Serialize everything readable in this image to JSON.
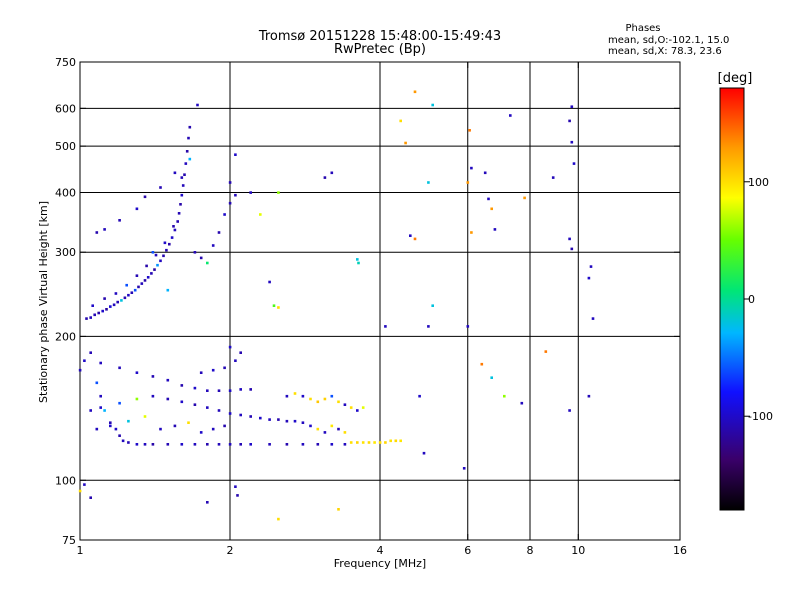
{
  "chart_data": {
    "type": "scatter",
    "title": "Tromsø 20151228 15:48:00-15:49:43",
    "subtitle": "RwPretec (Bp)",
    "phases_title": "Phases",
    "phases_stats_o": "mean, sd,O:-102.1, 15.0",
    "phases_stats_x": "mean, sd,X:  78.3, 23.6",
    "xlabel": "Frequency [MHz]",
    "ylabel": "Stationary phase Virtual Height [km]",
    "xscale": "log",
    "yscale": "log",
    "xlim": [
      1,
      16
    ],
    "ylim": [
      75,
      750
    ],
    "x_ticks": [
      1,
      2,
      4,
      6,
      8,
      10,
      16
    ],
    "x_ticklabels": [
      "1",
      "2",
      "4",
      "6",
      "8",
      "10",
      "16"
    ],
    "x_gridlines": [
      2,
      4,
      6,
      8,
      10
    ],
    "y_ticks": [
      75,
      100,
      200,
      300,
      400,
      500,
      600,
      750
    ],
    "y_ticklabels": [
      "75",
      "100",
      "200",
      "300",
      "400",
      "500",
      "600",
      "750"
    ],
    "y_gridlines": [
      100,
      200,
      300,
      400,
      500,
      600
    ],
    "colorbar": {
      "label": "[deg]",
      "range": [
        -180,
        180
      ],
      "ticks": [
        -100,
        0,
        100
      ],
      "ticklabels": [
        "-100",
        "0",
        "100"
      ]
    },
    "series": [
      {
        "points": [
          [
            1.03,
            218,
            -110
          ],
          [
            1.05,
            219,
            -105
          ],
          [
            1.07,
            222,
            -108
          ],
          [
            1.09,
            224,
            -112
          ],
          [
            1.11,
            226,
            -100
          ],
          [
            1.13,
            228,
            -115
          ],
          [
            1.15,
            231,
            -95
          ],
          [
            1.17,
            233,
            -105
          ],
          [
            1.19,
            236,
            -108
          ],
          [
            1.21,
            238,
            -20
          ],
          [
            1.23,
            241,
            -110
          ],
          [
            1.25,
            244,
            -102
          ],
          [
            1.27,
            247,
            -108
          ],
          [
            1.29,
            250,
            -60
          ],
          [
            1.31,
            254,
            -110
          ],
          [
            1.33,
            258,
            -105
          ],
          [
            1.35,
            262,
            -112
          ],
          [
            1.37,
            266,
            -100
          ],
          [
            1.39,
            271,
            -108
          ],
          [
            1.41,
            276,
            -115
          ],
          [
            1.43,
            282,
            -40
          ],
          [
            1.45,
            288,
            -104
          ],
          [
            1.47,
            295,
            -110
          ],
          [
            1.49,
            303,
            -108
          ],
          [
            1.51,
            312,
            -112
          ],
          [
            1.53,
            322,
            -100
          ],
          [
            1.55,
            334,
            -105
          ],
          [
            1.57,
            348,
            -110
          ],
          [
            1.58,
            362,
            -108
          ],
          [
            1.59,
            378,
            -112
          ],
          [
            1.6,
            395,
            -100
          ],
          [
            1.61,
            414,
            -106
          ],
          [
            1.62,
            436,
            -110
          ],
          [
            1.63,
            460,
            -104
          ],
          [
            1.64,
            488,
            -112
          ],
          [
            1.65,
            520,
            -108
          ],
          [
            1.66,
            548,
            -110
          ],
          [
            1.06,
            232,
            -100
          ],
          [
            1.12,
            240,
            -110
          ],
          [
            1.18,
            246,
            -104
          ],
          [
            1.24,
            256,
            -60
          ],
          [
            1.3,
            268,
            -108
          ],
          [
            1.36,
            281,
            -112
          ],
          [
            1.42,
            296,
            -104
          ],
          [
            1.48,
            314,
            -100
          ],
          [
            1.54,
            340,
            -110
          ],
          [
            1.6,
            430,
            -106
          ],
          [
            1.66,
            470,
            -30
          ],
          [
            1.7,
            300,
            -108
          ],
          [
            1.75,
            292,
            -110
          ],
          [
            1.8,
            285,
            10
          ],
          [
            1.85,
            310,
            -104
          ],
          [
            1.9,
            330,
            -110
          ],
          [
            1.95,
            360,
            -100
          ],
          [
            2.0,
            380,
            -108
          ],
          [
            2.05,
            395,
            -106
          ],
          [
            1.08,
            330,
            -110
          ],
          [
            1.12,
            335,
            -105
          ],
          [
            1.2,
            350,
            -108
          ],
          [
            1.3,
            370,
            -100
          ],
          [
            1.35,
            392,
            -112
          ],
          [
            1.45,
            410,
            -108
          ],
          [
            1.55,
            440,
            -104
          ],
          [
            1.4,
            300,
            -60
          ],
          [
            1.5,
            250,
            -30
          ],
          [
            1.72,
            610,
            -104
          ],
          [
            2.0,
            420,
            -108
          ],
          [
            2.05,
            480,
            -100
          ],
          [
            2.2,
            400,
            -104
          ],
          [
            2.3,
            360,
            80
          ],
          [
            2.5,
            400,
            60
          ],
          [
            3.1,
            430,
            -110
          ],
          [
            3.2,
            440,
            -106
          ],
          [
            3.6,
            290,
            -20
          ],
          [
            3.62,
            285,
            -10
          ],
          [
            2.4,
            260,
            -104
          ],
          [
            2.45,
            232,
            40
          ],
          [
            2.5,
            230,
            100
          ],
          [
            1.0,
            170,
            -104
          ],
          [
            1.02,
            178,
            -100
          ],
          [
            1.05,
            185,
            -108
          ],
          [
            1.08,
            160,
            -60
          ],
          [
            1.1,
            150,
            -104
          ],
          [
            1.12,
            140,
            -30
          ],
          [
            1.15,
            132,
            -108
          ],
          [
            1.18,
            128,
            -100
          ],
          [
            1.2,
            124,
            -110
          ],
          [
            1.22,
            121,
            -104
          ],
          [
            1.25,
            120,
            -108
          ],
          [
            1.3,
            119,
            -100
          ],
          [
            1.35,
            119,
            -104
          ],
          [
            1.4,
            119,
            -112
          ],
          [
            1.5,
            119,
            -108
          ],
          [
            1.6,
            119,
            -100
          ],
          [
            1.7,
            119,
            -104
          ],
          [
            1.8,
            119,
            -110
          ],
          [
            1.9,
            119,
            -106
          ],
          [
            2.0,
            119,
            -104
          ],
          [
            2.1,
            119,
            -108
          ],
          [
            2.2,
            119,
            -100
          ],
          [
            2.4,
            119,
            -106
          ],
          [
            2.6,
            119,
            -110
          ],
          [
            2.8,
            119,
            -104
          ],
          [
            3.0,
            119,
            -108
          ],
          [
            3.2,
            119,
            -100
          ],
          [
            3.4,
            119,
            -104
          ],
          [
            3.5,
            120,
            100
          ],
          [
            3.6,
            120,
            104
          ],
          [
            3.7,
            120,
            98
          ],
          [
            3.8,
            120,
            102
          ],
          [
            3.9,
            120,
            96
          ],
          [
            4.0,
            120,
            100
          ],
          [
            4.1,
            120,
            104
          ],
          [
            4.2,
            121,
            98
          ],
          [
            4.3,
            121,
            102
          ],
          [
            4.4,
            121,
            96
          ],
          [
            1.1,
            176,
            -104
          ],
          [
            1.2,
            172,
            -106
          ],
          [
            1.3,
            168,
            -100
          ],
          [
            1.4,
            165,
            -108
          ],
          [
            1.5,
            162,
            -104
          ],
          [
            1.6,
            158,
            -110
          ],
          [
            1.7,
            156,
            -100
          ],
          [
            1.8,
            154,
            -106
          ],
          [
            1.9,
            154,
            -108
          ],
          [
            2.0,
            154,
            -100
          ],
          [
            2.1,
            155,
            -104
          ],
          [
            2.2,
            155,
            -110
          ],
          [
            1.75,
            168,
            -106
          ],
          [
            1.85,
            170,
            -100
          ],
          [
            1.95,
            172,
            -108
          ],
          [
            2.05,
            178,
            -104
          ],
          [
            2.1,
            185,
            -110
          ],
          [
            2.0,
            190,
            -100
          ],
          [
            1.05,
            140,
            -104
          ],
          [
            1.1,
            142,
            -100
          ],
          [
            1.2,
            145,
            -60
          ],
          [
            1.3,
            148,
            60
          ],
          [
            1.4,
            150,
            -104
          ],
          [
            1.5,
            148,
            -108
          ],
          [
            1.6,
            146,
            -100
          ],
          [
            1.7,
            144,
            -110
          ],
          [
            1.8,
            142,
            -104
          ],
          [
            1.9,
            140,
            -106
          ],
          [
            2.0,
            138,
            -100
          ],
          [
            2.1,
            137,
            -104
          ],
          [
            2.2,
            136,
            -108
          ],
          [
            2.3,
            135,
            -100
          ],
          [
            2.4,
            134,
            -104
          ],
          [
            2.5,
            134,
            -110
          ],
          [
            2.6,
            133,
            -106
          ],
          [
            2.7,
            133,
            -100
          ],
          [
            2.8,
            132,
            -104
          ],
          [
            1.08,
            128,
            -104
          ],
          [
            1.15,
            130,
            -100
          ],
          [
            1.25,
            133,
            -20
          ],
          [
            1.35,
            136,
            80
          ],
          [
            1.45,
            128,
            -104
          ],
          [
            1.55,
            130,
            -108
          ],
          [
            1.65,
            132,
            100
          ],
          [
            1.75,
            126,
            -100
          ],
          [
            1.85,
            128,
            -104
          ],
          [
            1.95,
            130,
            -110
          ],
          [
            2.6,
            150,
            -104
          ],
          [
            2.7,
            152,
            100
          ],
          [
            2.8,
            150,
            -100
          ],
          [
            2.9,
            148,
            100
          ],
          [
            3.0,
            146,
            110
          ],
          [
            3.1,
            148,
            106
          ],
          [
            3.2,
            150,
            -60
          ],
          [
            3.3,
            146,
            100
          ],
          [
            3.4,
            144,
            -104
          ],
          [
            3.5,
            142,
            100
          ],
          [
            3.6,
            140,
            -100
          ],
          [
            3.7,
            142,
            80
          ],
          [
            2.9,
            130,
            -100
          ],
          [
            3.0,
            128,
            100
          ],
          [
            3.1,
            126,
            -104
          ],
          [
            3.2,
            130,
            96
          ],
          [
            3.3,
            128,
            -108
          ],
          [
            3.4,
            126,
            100
          ],
          [
            1.0,
            95,
            100
          ],
          [
            1.02,
            98,
            -104
          ],
          [
            1.05,
            92,
            -110
          ],
          [
            1.8,
            90,
            -108
          ],
          [
            2.05,
            97,
            -104
          ],
          [
            2.07,
            93,
            -110
          ],
          [
            2.5,
            83,
            100
          ],
          [
            3.3,
            87,
            104
          ],
          [
            4.1,
            210,
            -104
          ],
          [
            4.8,
            150,
            -100
          ],
          [
            4.9,
            114,
            -104
          ],
          [
            5.0,
            210,
            -104
          ],
          [
            5.1,
            610,
            -20
          ],
          [
            4.7,
            650,
            130
          ],
          [
            4.5,
            508,
            130
          ],
          [
            4.4,
            565,
            100
          ],
          [
            4.6,
            325,
            -104
          ],
          [
            4.7,
            320,
            140
          ],
          [
            5.0,
            420,
            -20
          ],
          [
            5.1,
            232,
            -20
          ],
          [
            5.9,
            106,
            -104
          ],
          [
            6.0,
            210,
            -104
          ],
          [
            6.1,
            330,
            130
          ],
          [
            6.0,
            420,
            130
          ],
          [
            6.05,
            540,
            140
          ],
          [
            6.1,
            450,
            -104
          ],
          [
            6.5,
            440,
            -106
          ],
          [
            6.6,
            388,
            -104
          ],
          [
            6.7,
            370,
            130
          ],
          [
            6.8,
            335,
            -104
          ],
          [
            7.3,
            580,
            -104
          ],
          [
            7.8,
            390,
            130
          ],
          [
            8.9,
            430,
            -106
          ],
          [
            9.7,
            605,
            -104
          ],
          [
            9.6,
            565,
            -110
          ],
          [
            9.7,
            510,
            -104
          ],
          [
            9.8,
            460,
            -100
          ],
          [
            9.6,
            320,
            -104
          ],
          [
            9.7,
            305,
            -110
          ],
          [
            10.6,
            280,
            -104
          ],
          [
            10.5,
            265,
            -100
          ],
          [
            10.7,
            218,
            -104
          ],
          [
            10.5,
            150,
            -106
          ],
          [
            9.6,
            140,
            -104
          ],
          [
            8.6,
            186,
            140
          ],
          [
            7.7,
            145,
            -104
          ],
          [
            7.1,
            150,
            60
          ],
          [
            6.7,
            164,
            -20
          ],
          [
            6.4,
            175,
            140
          ]
        ]
      }
    ]
  }
}
